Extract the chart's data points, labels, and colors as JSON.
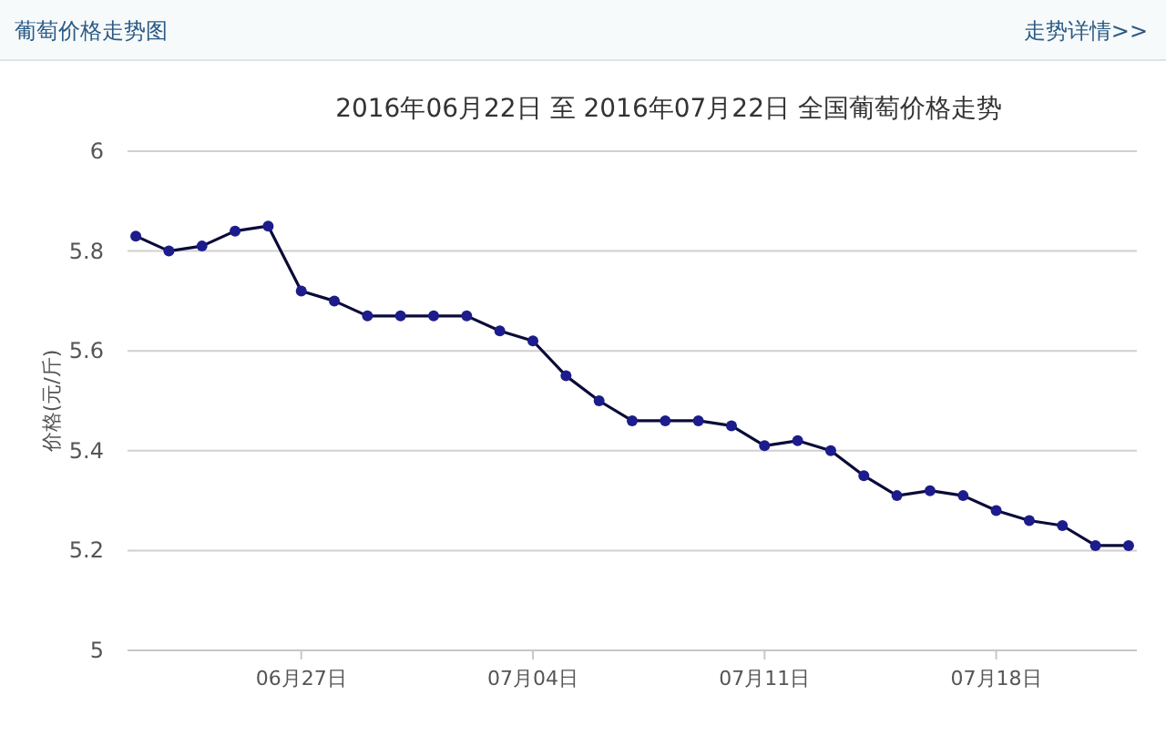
{
  "chart_data": {
    "type": "line",
    "title": "2016年06月22日 至 2016年07月22日 全国葡萄价格走势",
    "ylabel": "价格(元/斤)",
    "annotations": [
      "葡萄价格走势图",
      "走势详情>>"
    ],
    "x": [
      "2016-06-22",
      "2016-06-23",
      "2016-06-24",
      "2016-06-25",
      "2016-06-26",
      "2016-06-27",
      "2016-06-28",
      "2016-06-29",
      "2016-06-30",
      "2016-07-01",
      "2016-07-02",
      "2016-07-03",
      "2016-07-04",
      "2016-07-05",
      "2016-07-06",
      "2016-07-07",
      "2016-07-08",
      "2016-07-09",
      "2016-07-10",
      "2016-07-11",
      "2016-07-12",
      "2016-07-13",
      "2016-07-14",
      "2016-07-15",
      "2016-07-16",
      "2016-07-17",
      "2016-07-18",
      "2016-07-19",
      "2016-07-20",
      "2016-07-21",
      "2016-07-22"
    ],
    "series": [
      {
        "color": "#1c1c8c",
        "values": [
          5.83,
          5.8,
          5.81,
          5.84,
          5.85,
          5.72,
          5.7,
          5.67,
          5.67,
          5.67,
          5.67,
          5.64,
          5.62,
          5.55,
          5.5,
          5.46,
          5.46,
          5.46,
          5.45,
          5.41,
          5.42,
          5.4,
          5.35,
          5.31,
          5.32,
          5.31,
          5.28,
          5.26,
          5.25,
          5.21,
          5.21
        ]
      }
    ],
    "xlim": [
      "2016-06-21T18:00",
      "2016-07-22T06:00"
    ],
    "xticks": [
      {
        "value": "2016-06-27",
        "label": "06月27日"
      },
      {
        "value": "2016-07-04",
        "label": "07月04日"
      },
      {
        "value": "2016-07-11",
        "label": "07月11日"
      },
      {
        "value": "2016-07-18",
        "label": "07月18日"
      }
    ],
    "ylim": [
      5,
      6
    ],
    "yticks": [
      5,
      5.2,
      5.4,
      5.6,
      5.8,
      6
    ],
    "grid": "y",
    "marker": "circle",
    "line_style": "solid"
  }
}
